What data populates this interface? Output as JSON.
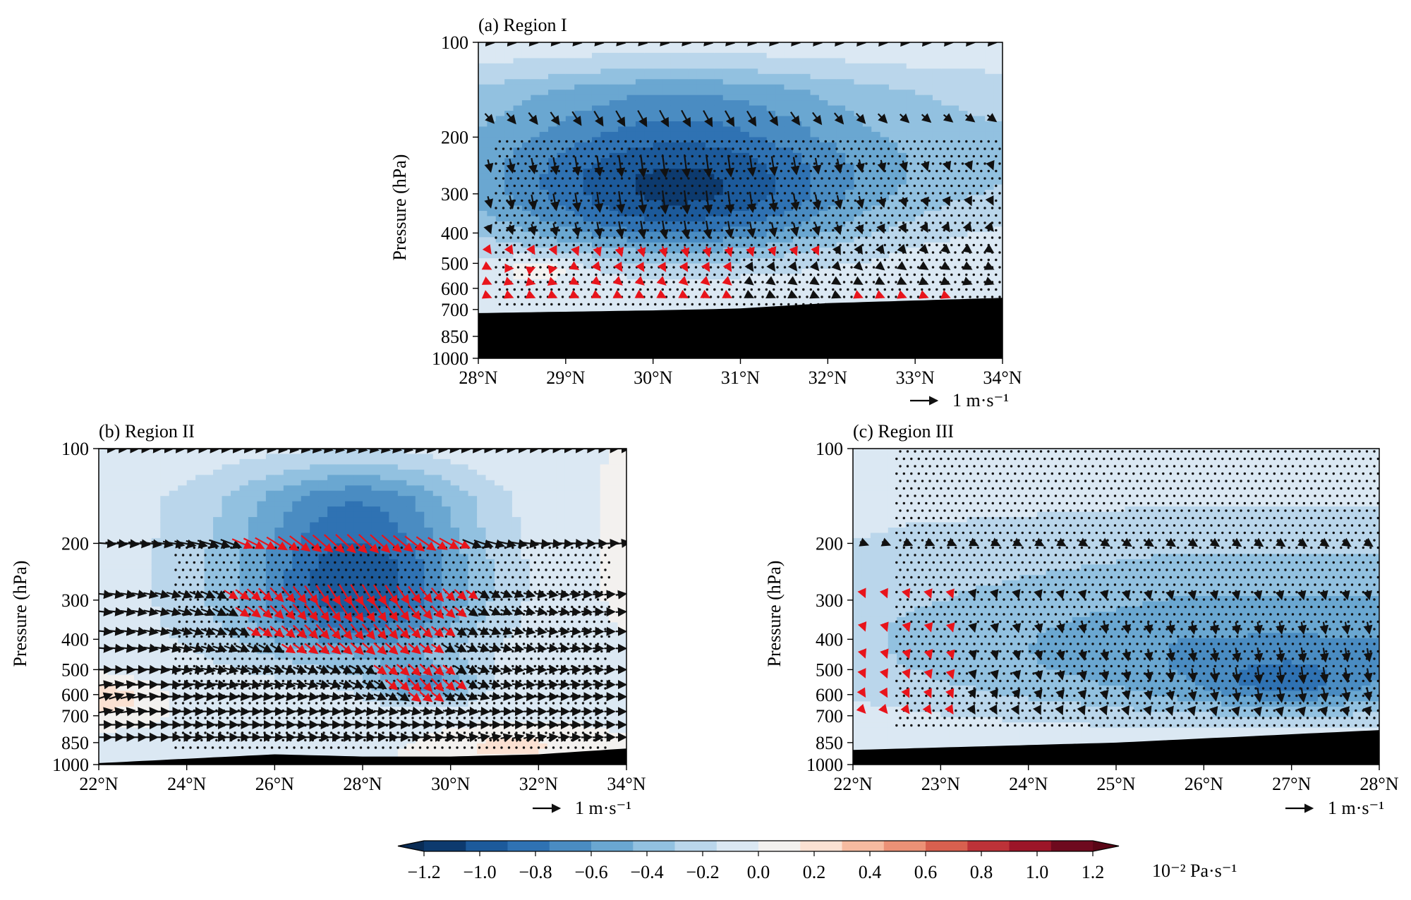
{
  "chart_data": [
    {
      "type": "heatmap",
      "panel": "a",
      "title": "(a) Region I",
      "ylabel": "Pressure (hPa)",
      "y_ticks": [
        100,
        200,
        300,
        400,
        500,
        600,
        700,
        850,
        1000
      ],
      "ylim": [
        1000,
        100
      ],
      "x_ticks": [
        "28°N",
        "29°N",
        "30°N",
        "31°N",
        "32°N",
        "33°N",
        "34°N"
      ],
      "xlim": [
        28,
        34
      ],
      "reference_vector": "1 m·s⁻¹",
      "field_extrema": {
        "min_omega": -0.9,
        "location": "30°N, 300 hPa"
      },
      "terrain_surface_hPa": [
        [
          28,
          720
        ],
        [
          30,
          705
        ],
        [
          31,
          695
        ],
        [
          32,
          670
        ],
        [
          34,
          645
        ]
      ]
    },
    {
      "type": "heatmap",
      "panel": "b",
      "title": "(b) Region II",
      "ylabel": "Pressure (hPa)",
      "y_ticks": [
        100,
        200,
        300,
        400,
        500,
        600,
        700,
        850,
        1000
      ],
      "ylim": [
        1000,
        100
      ],
      "x_ticks": [
        "22°N",
        "24°N",
        "26°N",
        "28°N",
        "30°N",
        "32°N",
        "34°N"
      ],
      "xlim": [
        22,
        34
      ],
      "reference_vector": "1 m·s⁻¹",
      "field_extrema": {
        "min_omega": -1.0,
        "location": "28°N, 250 hPa"
      },
      "terrain_surface_hPa": [
        [
          22,
          990
        ],
        [
          24,
          960
        ],
        [
          26,
          930
        ],
        [
          28,
          945
        ],
        [
          30,
          945
        ],
        [
          32,
          930
        ],
        [
          34,
          890
        ]
      ]
    },
    {
      "type": "heatmap",
      "panel": "c",
      "title": "(c) Region III",
      "ylabel": "Pressure (hPa)",
      "y_ticks": [
        100,
        200,
        300,
        400,
        500,
        600,
        700,
        850,
        1000
      ],
      "ylim": [
        1000,
        100
      ],
      "x_ticks": [
        "22°N",
        "23°N",
        "24°N",
        "25°N",
        "26°N",
        "27°N",
        "28°N"
      ],
      "xlim": [
        22,
        28
      ],
      "reference_vector": "1 m·s⁻¹",
      "field_extrema": {
        "min_omega": -0.8,
        "location": "27°N, 550 hPa"
      },
      "terrain_surface_hPa": [
        [
          22,
          900
        ],
        [
          25,
          850
        ],
        [
          28,
          780
        ]
      ]
    },
    {
      "type": "colorbar",
      "ticks": [
        "−1.2",
        "−1.0",
        "−0.8",
        "−0.6",
        "−0.4",
        "−0.2",
        "0.0",
        "0.2",
        "0.4",
        "0.6",
        "0.8",
        "1.0",
        "1.2"
      ],
      "range": [
        -1.2,
        1.2
      ],
      "unit_label": "10⁻² Pa·s⁻¹",
      "colors": [
        "#0d3a6e",
        "#1c5a9b",
        "#2f72b3",
        "#4a8cc2",
        "#6aa7d1",
        "#92c1e0",
        "#bad6eb",
        "#dbe8f3",
        "#f3f1ef",
        "#fbe1d2",
        "#f6bba0",
        "#ec9176",
        "#d8604f",
        "#bd3238",
        "#9c1528",
        "#6e0a1e"
      ]
    }
  ]
}
